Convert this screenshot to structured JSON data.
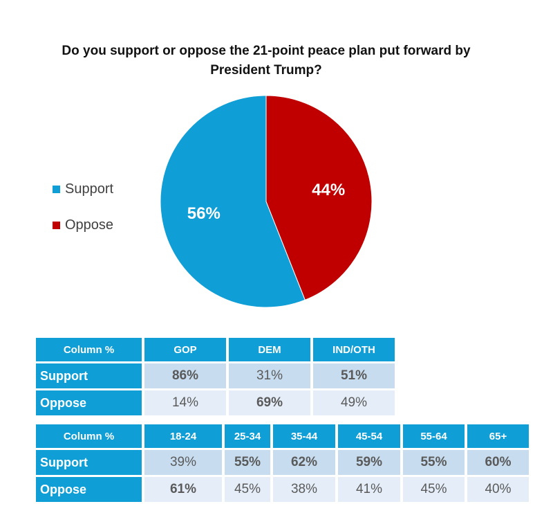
{
  "chart_data": {
    "type": "pie",
    "title": "Do you support or oppose the 21-point peace plan put forward by President Trump?",
    "slices": [
      {
        "name": "Support",
        "value": 56,
        "label": "56%",
        "color": "#0f9ed5"
      },
      {
        "name": "Oppose",
        "value": 44,
        "label": "44%",
        "color": "#c00000"
      }
    ],
    "legend": {
      "placement": "left",
      "entries": [
        "Support",
        "Oppose"
      ]
    }
  },
  "tables": [
    {
      "header": [
        "Column %",
        "GOP",
        "DEM",
        "IND/OTH"
      ],
      "rows": [
        {
          "label": "Support",
          "cells": [
            {
              "v": "86%",
              "b": true
            },
            {
              "v": "31%",
              "b": false
            },
            {
              "v": "51%",
              "b": true
            }
          ]
        },
        {
          "label": "Oppose",
          "cells": [
            {
              "v": "14%",
              "b": false
            },
            {
              "v": "69%",
              "b": true
            },
            {
              "v": "49%",
              "b": false
            }
          ]
        }
      ]
    },
    {
      "header": [
        "Column %",
        "18-24",
        "25-34",
        "35-44",
        "45-54",
        "55-64",
        "65+"
      ],
      "rows": [
        {
          "label": "Support",
          "cells": [
            {
              "v": "39%",
              "b": false
            },
            {
              "v": "55%",
              "b": true
            },
            {
              "v": "62%",
              "b": true
            },
            {
              "v": "59%",
              "b": true
            },
            {
              "v": "55%",
              "b": true
            },
            {
              "v": "60%",
              "b": true
            }
          ]
        },
        {
          "label": "Oppose",
          "cells": [
            {
              "v": "61%",
              "b": true
            },
            {
              "v": "45%",
              "b": false
            },
            {
              "v": "38%",
              "b": false
            },
            {
              "v": "41%",
              "b": false
            },
            {
              "v": "45%",
              "b": false
            },
            {
              "v": "40%",
              "b": false
            }
          ]
        }
      ]
    }
  ]
}
